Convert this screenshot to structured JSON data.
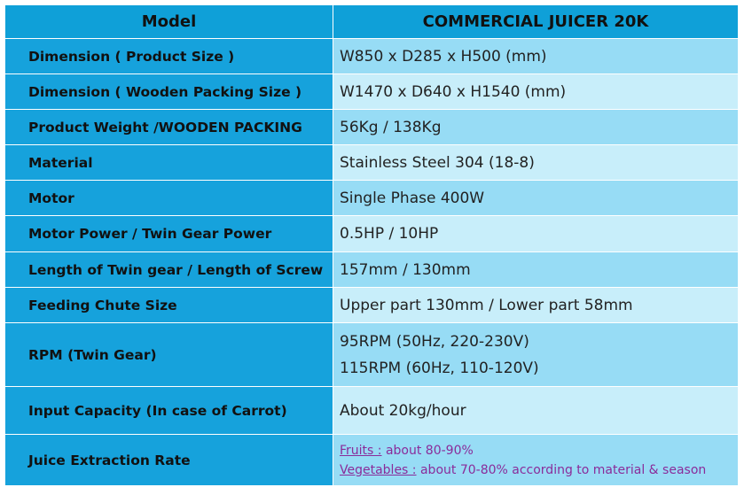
{
  "table": {
    "header": [
      "Model",
      "COMMERCIAL JUICER 20K"
    ],
    "rows": [
      {
        "label": "Dimension ( Product Size )",
        "lines": [
          [
            "W850 x D285 x H500 (mm)"
          ]
        ]
      },
      {
        "label": "Dimension ( Wooden Packing Size )",
        "lines": [
          [
            "W1470 x D640 x H1540 (mm)"
          ]
        ]
      },
      {
        "label": "Product Weight /WOODEN PACKING",
        "lines": [
          [
            "56Kg / 138Kg"
          ]
        ]
      },
      {
        "label": "Material",
        "lines": [
          [
            "Stainless Steel 304 (18-8)"
          ]
        ]
      },
      {
        "label": "Motor",
        "lines": [
          [
            "Single Phase 400W"
          ]
        ]
      },
      {
        "label": "Motor Power / Twin Gear Power",
        "lines": [
          [
            "0.5HP / 10HP"
          ]
        ]
      },
      {
        "label": "Length of Twin gear / Length of Screw",
        "lines": [
          [
            "157mm / 130mm"
          ]
        ]
      },
      {
        "label": "Feeding Chute Size",
        "lines": [
          [
            "Upper part 130mm / Lower part 58mm"
          ]
        ]
      },
      {
        "label": "RPM (Twin Gear)",
        "lines": [
          [
            "95RPM (50Hz, 220-230V)"
          ],
          [
            "115RPM (60Hz, 110-120V)"
          ]
        ]
      },
      {
        "label": "Input Capacity (In case of Carrot)",
        "lines": [
          [
            "About 20kg/hour"
          ]
        ]
      },
      {
        "label": "Juice Extraction Rate",
        "lines": [
          [
            "Fruits :",
            " about 80-90%"
          ],
          [
            "Vegetables :",
            " about 70-80% according to material & season"
          ]
        ]
      }
    ]
  }
}
